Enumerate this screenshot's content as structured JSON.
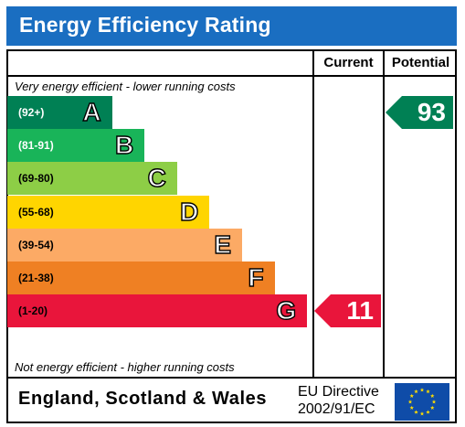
{
  "title": "Energy Efficiency Rating",
  "columns": {
    "current": "Current",
    "potential": "Potential"
  },
  "notes": {
    "top": "Very energy efficient - lower running costs",
    "bottom": "Not energy efficient - higher running costs"
  },
  "footer": {
    "region": "England, Scotland & Wales",
    "directive_line1": "EU Directive",
    "directive_line2": "2002/91/EC"
  },
  "colors": {
    "title_bar": "#1a6ec1",
    "eu_flag": "#0f4ca8",
    "eu_star": "#ffdd00"
  },
  "chart_data": {
    "type": "bar",
    "title": "Energy Efficiency Rating",
    "categories": [
      "A",
      "B",
      "C",
      "D",
      "E",
      "F",
      "G"
    ],
    "ranges": [
      "(92+)",
      "(81-91)",
      "(69-80)",
      "(55-68)",
      "(39-54)",
      "(21-38)",
      "(1-20)"
    ],
    "band_colors": [
      "#008054",
      "#19b459",
      "#8dce46",
      "#ffd500",
      "#fcaa65",
      "#ef8023",
      "#e9153b"
    ],
    "range_text_colors": [
      "#ffffff",
      "#ffffff",
      "#000000",
      "#000000",
      "#000000",
      "#000000",
      "#000000"
    ],
    "relative_length": [
      1,
      2,
      3,
      4,
      5,
      6,
      7
    ],
    "series": [
      {
        "name": "Current",
        "value": 11,
        "band": "G"
      },
      {
        "name": "Potential",
        "value": 93,
        "band": "A"
      }
    ]
  }
}
